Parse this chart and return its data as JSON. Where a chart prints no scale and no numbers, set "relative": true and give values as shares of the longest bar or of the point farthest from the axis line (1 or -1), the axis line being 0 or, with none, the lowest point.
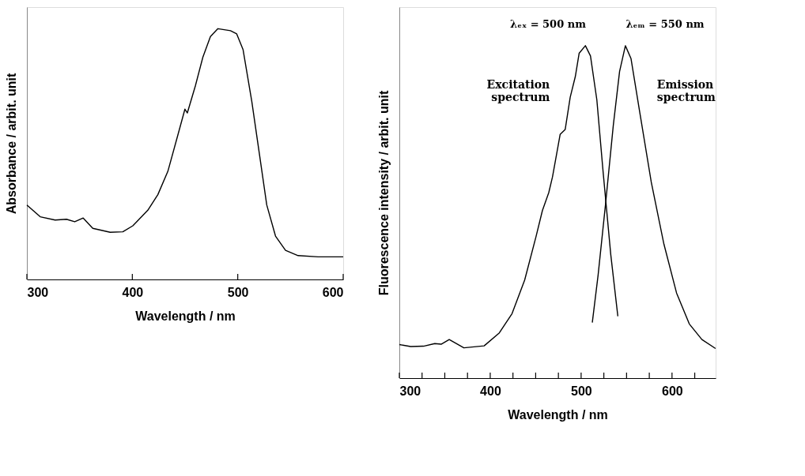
{
  "chart_data": [
    {
      "type": "line",
      "relative": true,
      "xlabel": "Wavelength  /  nm",
      "ylabel": "Absorbance / arbit. unit",
      "xlim": [
        300,
        600
      ],
      "xticks": [
        300,
        400,
        500,
        600
      ],
      "marker": "none",
      "line_style": "solid",
      "series": [
        {
          "color": "#000000",
          "x": [
            300,
            312.6,
            326.8,
            337.5,
            345.4,
            353.4,
            362.5,
            379,
            391,
            400.5,
            414.7,
            424.2,
            433.7,
            443.2,
            449.9,
            452.2,
            459.8,
            466.9,
            474.1,
            481.2,
            493.1,
            499,
            505,
            513.3,
            520.4,
            527.5,
            535.8,
            545.3,
            557.2,
            576.2,
            600
          ],
          "values": [
            0.297,
            0.25,
            0.237,
            0.24,
            0.23,
            0.245,
            0.204,
            0.188,
            0.19,
            0.214,
            0.276,
            0.338,
            0.431,
            0.576,
            0.679,
            0.664,
            0.772,
            0.886,
            0.969,
            1,
            0.992,
            0.979,
            0.917,
            0.71,
            0.504,
            0.297,
            0.173,
            0.116,
            0.095,
            0.09,
            0.09
          ]
        }
      ]
    },
    {
      "type": "line",
      "relative": true,
      "xlabel": "Wavelength  /  nm",
      "ylabel": "Fluorescence intensity / arbit. unit",
      "xlim": [
        300,
        648
      ],
      "xticks": [
        300,
        {
          "value": 325,
          "label": null
        },
        {
          "value": 350,
          "label": null
        },
        {
          "value": 375,
          "label": null
        },
        400,
        {
          "value": 425,
          "label": null
        },
        {
          "value": 450,
          "label": null
        },
        {
          "value": 475,
          "label": null
        },
        500,
        {
          "value": 525,
          "label": null
        },
        {
          "value": 550,
          "label": null
        },
        {
          "value": 575,
          "label": null
        },
        600,
        {
          "value": 625,
          "label": null
        }
      ],
      "marker": "none",
      "line_style": "solid",
      "annotations": [
        "λₑₓ = 500 nm",
        "λₑₘ = 550 nm"
      ],
      "series": [
        {
          "name": "Excitation spectrum",
          "color": "#000000",
          "x": [
            300,
            312.5,
            326.5,
            339,
            346,
            354.9,
            371,
            393.3,
            410,
            424,
            437.9,
            450.4,
            457.4,
            464.4,
            468.5,
            474.1,
            476.9,
            482.5,
            488,
            493.6,
            497.8,
            504.7,
            510.3,
            517.3,
            524.2,
            532.6,
            540.4
          ],
          "values": [
            0.101,
            0.095,
            0.096,
            0.104,
            0.102,
            0.116,
            0.091,
            0.097,
            0.136,
            0.194,
            0.295,
            0.426,
            0.504,
            0.558,
            0.605,
            0.69,
            0.733,
            0.748,
            0.845,
            0.907,
            0.977,
            1,
            0.969,
            0.837,
            0.62,
            0.372,
            0.186
          ]
        },
        {
          "name": "Emission spectrum",
          "color": "#000000",
          "x": [
            512.3,
            518.7,
            527,
            535.4,
            542.3,
            548.7,
            554.9,
            564.6,
            577.2,
            591.1,
            605,
            619,
            632.9,
            647.9
          ],
          "values": [
            0.167,
            0.31,
            0.527,
            0.76,
            0.922,
            1,
            0.961,
            0.798,
            0.589,
            0.403,
            0.256,
            0.163,
            0.116,
            0.089
          ]
        }
      ]
    }
  ]
}
